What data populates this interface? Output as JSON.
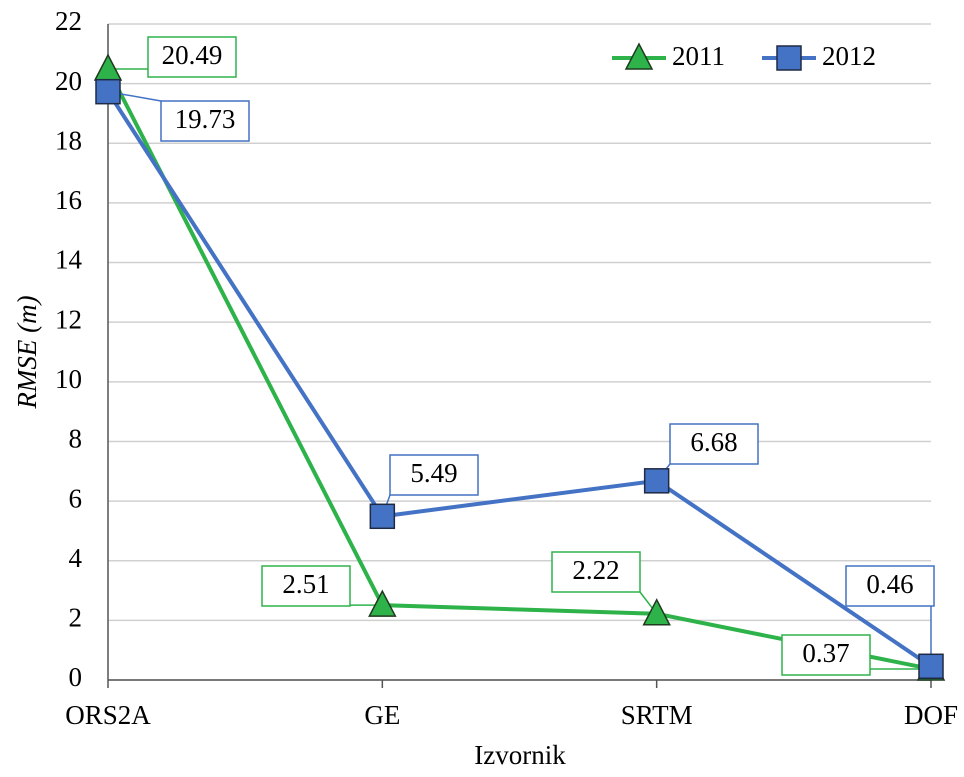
{
  "chart_data": {
    "type": "line",
    "x_label": "Izvornik",
    "y_label": "RMSE (m)",
    "categories": [
      "ORS2A",
      "GE",
      "SRTM",
      "DOF"
    ],
    "series": [
      {
        "name": "2011",
        "color": "#2eb24a",
        "marker": "triangle",
        "values": [
          20.49,
          2.51,
          2.22,
          0.37
        ]
      },
      {
        "name": "2012",
        "color": "#4472c4",
        "marker": "square",
        "values": [
          19.73,
          5.49,
          6.68,
          0.46
        ]
      }
    ],
    "ylim": [
      0,
      22
    ],
    "yticks": [
      0,
      2,
      4,
      6,
      8,
      10,
      12,
      14,
      16,
      18,
      20,
      22
    ],
    "grid": true,
    "legend": "top-right"
  }
}
